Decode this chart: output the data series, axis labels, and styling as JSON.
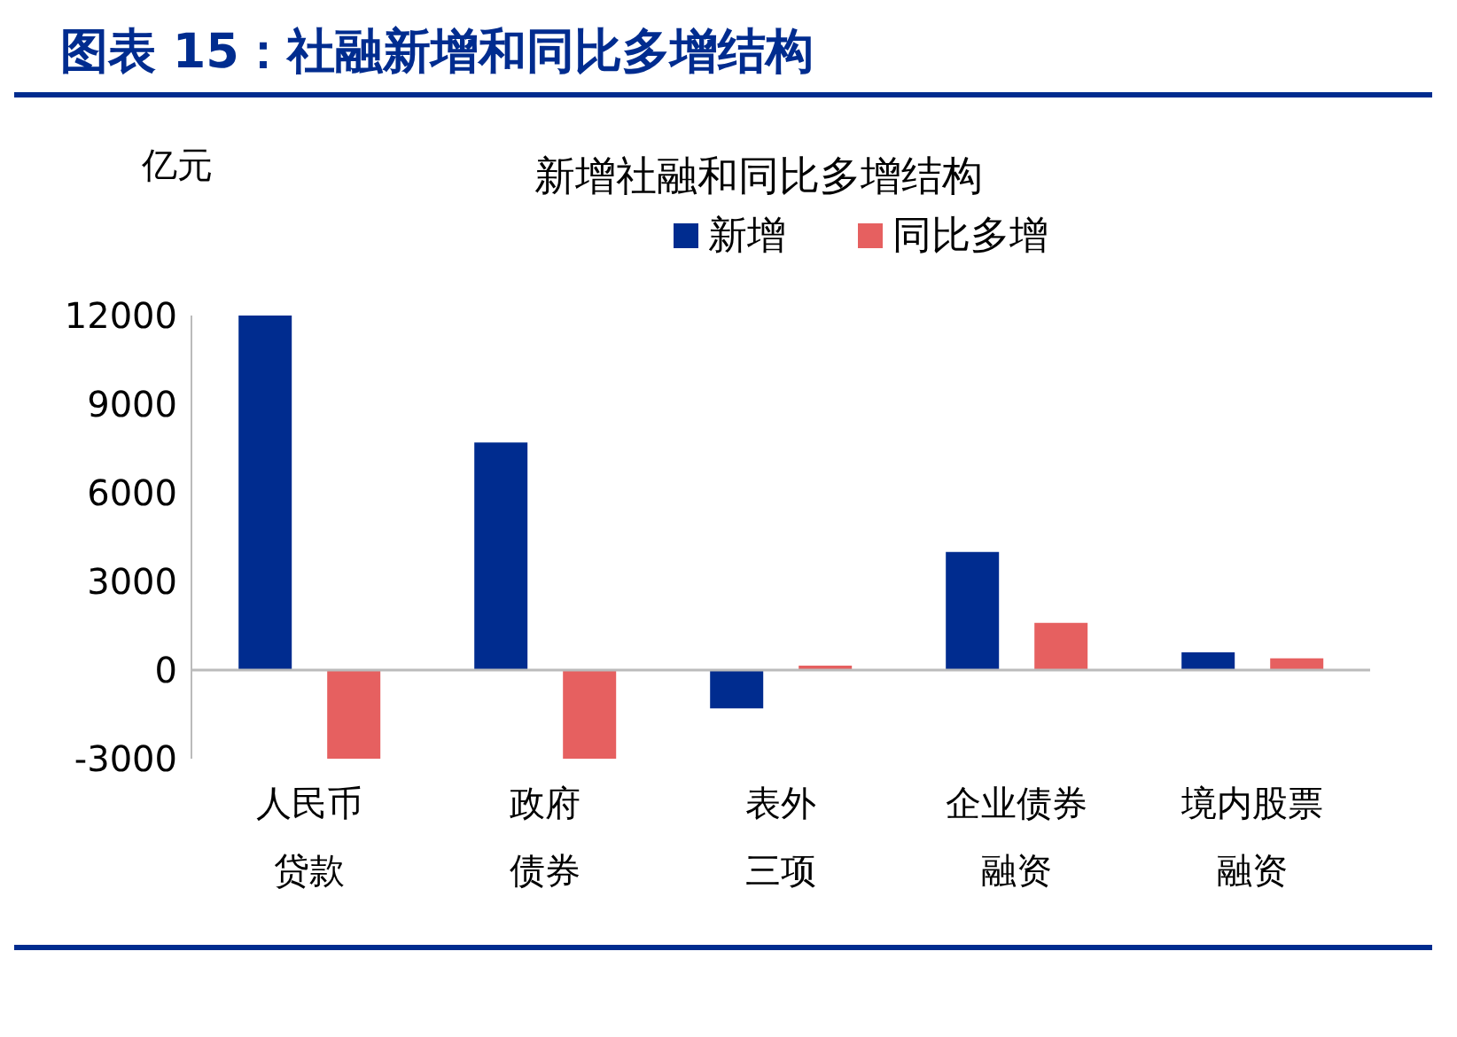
{
  "chart_data": {
    "type": "bar",
    "title": "图表 15：社融新增和同比多增结构",
    "subtitle": "新增社融和同比多增结构",
    "ylabel": "亿元",
    "categories": [
      "人民币贷款",
      "政府债券",
      "表外三项",
      "企业债券融资",
      "境内股票融资"
    ],
    "series": [
      {
        "name": "新增",
        "color": "#002c8f",
        "values": [
          12000,
          7700,
          -1300,
          4000,
          600
        ]
      },
      {
        "name": "同比多增",
        "color": "#e66060",
        "values": [
          -3000,
          -3000,
          150,
          1600,
          400
        ]
      }
    ],
    "ylim": [
      -3000,
      12000
    ],
    "yticks": [
      -3000,
      0,
      3000,
      6000,
      9000,
      12000
    ],
    "grid": false,
    "legend": "top",
    "ref_lines": [
      {
        "axis": "y",
        "value": 0,
        "color": "#bbbbbb"
      }
    ]
  }
}
